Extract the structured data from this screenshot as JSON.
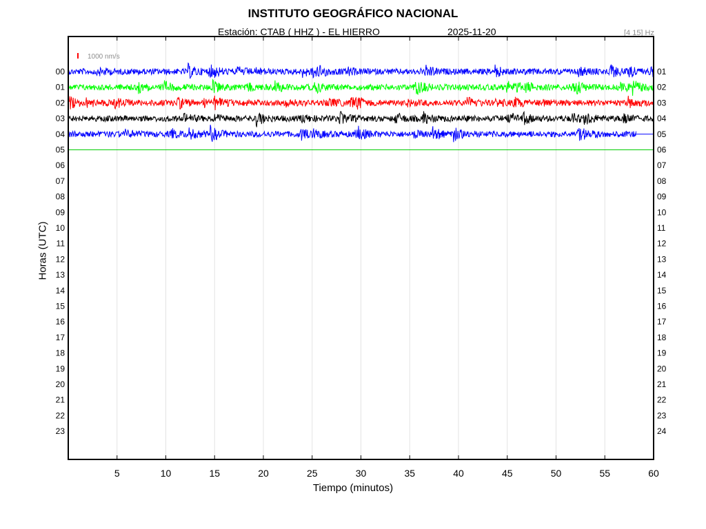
{
  "header": {
    "title": "INSTITUTO GEOGRÁFICO NACIONAL",
    "station": "Estación:  CTAB ( HHZ ) - EL HIERRO",
    "date": "2025-11-20",
    "band": "[4 15] Hz"
  },
  "chart_data": {
    "type": "line",
    "title": "INSTITUTO GEOGRÁFICO NACIONAL",
    "xlabel": "Tiempo (minutos)",
    "ylabel": "Horas (UTC)",
    "xlim": [
      0,
      60
    ],
    "x_ticks": [
      "5",
      "10",
      "15",
      "20",
      "25",
      "30",
      "35",
      "40",
      "45",
      "50",
      "55",
      "60"
    ],
    "left_hour_labels": [
      "00",
      "01",
      "02",
      "03",
      "04",
      "05",
      "06",
      "07",
      "08",
      "09",
      "10",
      "11",
      "12",
      "13",
      "14",
      "15",
      "16",
      "17",
      "18",
      "19",
      "20",
      "21",
      "22",
      "23"
    ],
    "right_hour_labels": [
      "01",
      "02",
      "03",
      "04",
      "05",
      "06",
      "07",
      "08",
      "09",
      "10",
      "11",
      "12",
      "13",
      "14",
      "15",
      "16",
      "17",
      "18",
      "19",
      "20",
      "21",
      "22",
      "23",
      "24"
    ],
    "scale_label": "1000 nm/s",
    "grid": "vertical",
    "traces": [
      {
        "hour": 0,
        "color": "#0000ff",
        "end_minute": 60
      },
      {
        "hour": 1,
        "color": "#00ff00",
        "end_minute": 60
      },
      {
        "hour": 2,
        "color": "#ff0000",
        "end_minute": 60
      },
      {
        "hour": 3,
        "color": "#000000",
        "end_minute": 60
      },
      {
        "hour": 4,
        "color": "#0000ff",
        "end_minute": 58.2
      }
    ],
    "current_time_line": {
      "hour": 5,
      "color": "#00cc00"
    }
  }
}
